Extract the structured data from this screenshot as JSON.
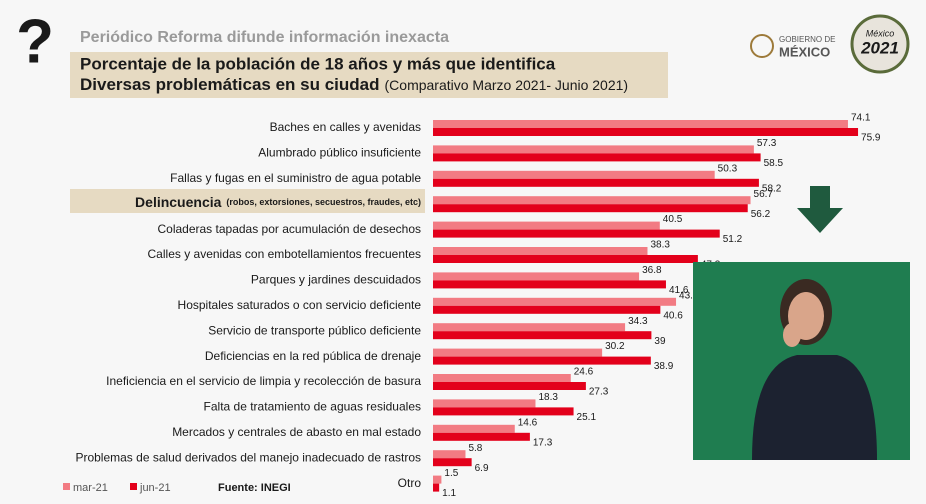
{
  "header": {
    "subtitle": "Periódico Reforma difunde información inexacta",
    "title_line1": "Porcentaje de la población de 18 años y más que identifica",
    "title_line2": "Diversas problemáticas en su ciudad",
    "title_note": "(Comparativo Marzo 2021- Junio 2021)",
    "icon": "?",
    "logo_gov_line1": "GOBIERNO DE",
    "logo_gov_line2": "MÉXICO",
    "logo_year_line1": "México",
    "logo_year_line2": "2021"
  },
  "chart_data": {
    "type": "hbar",
    "categories": [
      "Baches en calles y avenidas",
      "Alumbrado público insuficiente",
      "Fallas y fugas en el suministro de agua potable",
      "Delincuencia",
      "Coladeras tapadas por acumulación de desechos",
      "Calles y avenidas con embotellamientos frecuentes",
      "Parques y jardines descuidados",
      "Hospitales saturados o con servicio deficiente",
      "Servicio de transporte público deficiente",
      "Deficiencias en la red pública de drenaje",
      "Ineficiencia en el servicio de limpia y recolección de basura",
      "Falta de tratamiento de aguas residuales",
      "Mercados y centrales de abasto en mal estado",
      "Problemas de salud derivados del manejo inadecuado de rastros",
      "Otro"
    ],
    "highlight": {
      "index": 3,
      "detail": "(robos, extorsiones, secuestros, fraudes, etc)"
    },
    "series": [
      {
        "name": "mar-21",
        "color": "#f27b83",
        "values": [
          74.1,
          57.3,
          50.3,
          56.7,
          40.5,
          38.3,
          36.8,
          43.4,
          34.3,
          30.2,
          24.6,
          18.3,
          14.6,
          5.8,
          1.5
        ]
      },
      {
        "name": "jun-21",
        "color": "#e3001b",
        "values": [
          75.9,
          58.5,
          58.2,
          56.2,
          51.2,
          47.3,
          41.6,
          40.6,
          39,
          38.9,
          27.3,
          25.1,
          17.3,
          6.9,
          1.1
        ]
      }
    ],
    "source": "Fuente: INEGI"
  }
}
